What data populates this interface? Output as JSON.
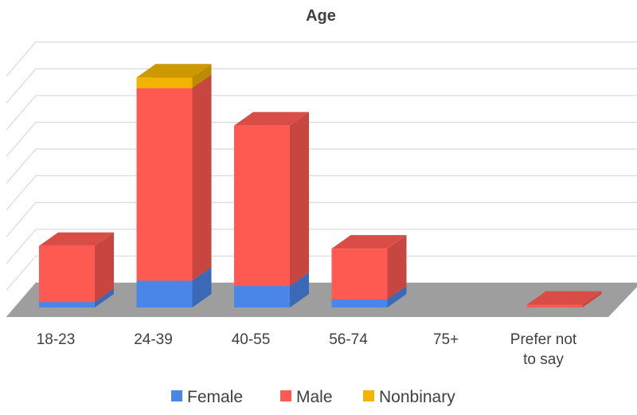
{
  "chart_data": {
    "type": "bar",
    "stacked": true,
    "three_d": true,
    "title": "Age",
    "categories": [
      "18-23",
      "24-39",
      "40-55",
      "56-74",
      "75+",
      "Prefer not to say"
    ],
    "category_label_lines": [
      [
        "18-23"
      ],
      [
        "24-39"
      ],
      [
        "40-55"
      ],
      [
        "56-74"
      ],
      [
        "75+"
      ],
      [
        "Prefer not",
        "to say"
      ]
    ],
    "series": [
      {
        "name": "Female",
        "color": "#4a86e8",
        "values": [
          2,
          10,
          8,
          3,
          0,
          0
        ]
      },
      {
        "name": "Male",
        "color": "#ff5a52",
        "values": [
          21,
          72,
          60,
          19,
          0,
          1
        ]
      },
      {
        "name": "Nonbinary",
        "color": "#f1b400",
        "values": [
          0,
          4,
          0,
          0,
          0,
          0
        ]
      }
    ],
    "ylim": [
      0,
      90
    ],
    "y_axis_labels_visible": false,
    "grid": true,
    "legend_position": "bottom"
  }
}
